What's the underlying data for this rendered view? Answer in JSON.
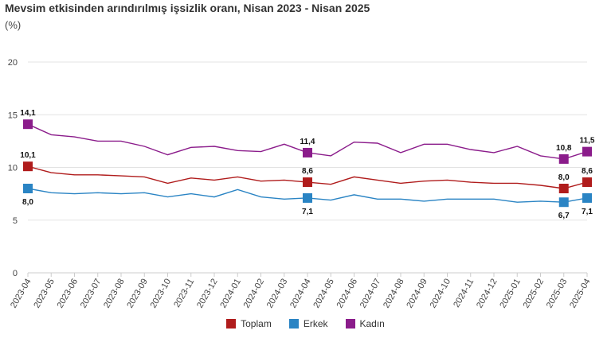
{
  "chart_data": {
    "type": "line",
    "title": "Mevsim etkisinden arındırılmış işsizlik oranı, Nisan 2023 - Nisan 2025",
    "unit": "(%)",
    "ylim": [
      0,
      20
    ],
    "yticks": [
      0,
      5,
      10,
      15,
      20
    ],
    "grid": "horizontal",
    "legend_position": "bottom",
    "categories": [
      "2023-04",
      "2023-05",
      "2023-06",
      "2023-07",
      "2023-08",
      "2023-09",
      "2023-10",
      "2023-11",
      "2023-12",
      "2024-01",
      "2024-02",
      "2024-03",
      "2024-04",
      "2024-05",
      "2024-06",
      "2024-07",
      "2024-08",
      "2024-09",
      "2024-10",
      "2024-11",
      "2024-12",
      "2025-01",
      "2025-02",
      "2025-03",
      "2025-04"
    ],
    "series": [
      {
        "name": "Toplam",
        "color": "#b01c1c",
        "values": [
          10.1,
          9.5,
          9.3,
          9.3,
          9.2,
          9.1,
          8.5,
          9.0,
          8.8,
          9.1,
          8.7,
          8.8,
          8.6,
          8.4,
          9.1,
          8.8,
          8.5,
          8.7,
          8.8,
          8.6,
          8.5,
          8.5,
          8.3,
          8.0,
          8.6
        ]
      },
      {
        "name": "Erkek",
        "color": "#2a84c4",
        "values": [
          8.0,
          7.6,
          7.5,
          7.6,
          7.5,
          7.6,
          7.2,
          7.5,
          7.2,
          7.9,
          7.2,
          7.0,
          7.1,
          6.9,
          7.4,
          7.0,
          7.0,
          6.8,
          7.0,
          7.0,
          7.0,
          6.7,
          6.8,
          6.7,
          7.1
        ]
      },
      {
        "name": "Kadın",
        "color": "#8b1c8b",
        "values": [
          14.1,
          13.1,
          12.9,
          12.5,
          12.5,
          12.0,
          11.2,
          11.9,
          12.0,
          11.6,
          11.5,
          12.2,
          11.4,
          11.1,
          12.4,
          12.3,
          11.4,
          12.2,
          12.2,
          11.7,
          11.4,
          12.0,
          11.1,
          10.8,
          11.5
        ]
      }
    ],
    "data_labels": [
      {
        "series": "Kadın",
        "index": 0,
        "text": "14,1"
      },
      {
        "series": "Toplam",
        "index": 0,
        "text": "10,1"
      },
      {
        "series": "Erkek",
        "index": 0,
        "text": "8,0"
      },
      {
        "series": "Kadın",
        "index": 12,
        "text": "11,4"
      },
      {
        "series": "Toplam",
        "index": 12,
        "text": "8,6"
      },
      {
        "series": "Erkek",
        "index": 12,
        "text": "7,1"
      },
      {
        "series": "Kadın",
        "index": 23,
        "text": "10,8"
      },
      {
        "series": "Toplam",
        "index": 23,
        "text": "8,0"
      },
      {
        "series": "Erkek",
        "index": 23,
        "text": "6,7"
      },
      {
        "series": "Kadın",
        "index": 24,
        "text": "11,5"
      },
      {
        "series": "Toplam",
        "index": 24,
        "text": "8,6"
      },
      {
        "series": "Erkek",
        "index": 24,
        "text": "7,1"
      }
    ]
  }
}
